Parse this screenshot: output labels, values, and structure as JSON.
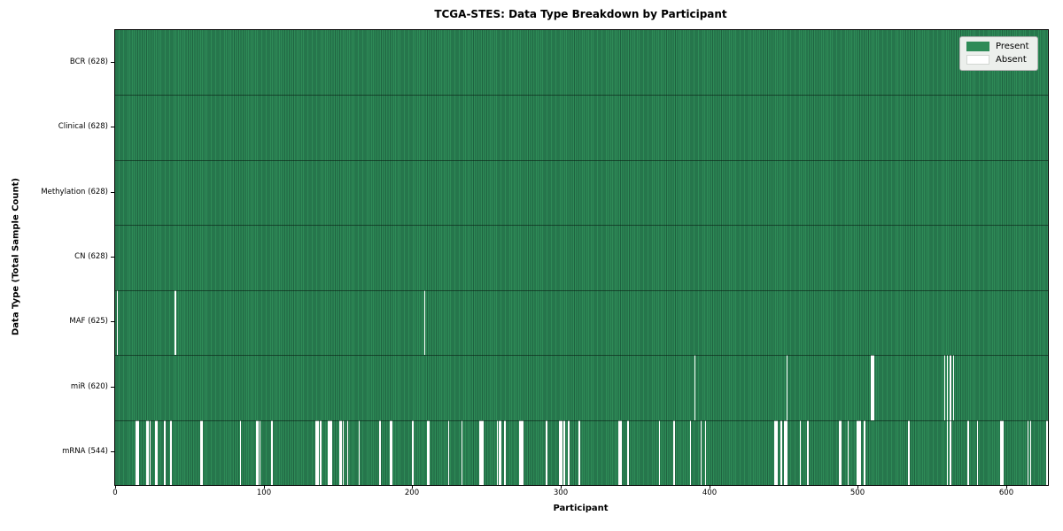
{
  "figure": {
    "title": "TCGA-STES: Data Type Breakdown by Participant"
  },
  "chart_data": {
    "type": "heatmap",
    "title": "TCGA-STES: Data Type Breakdown by Participant",
    "xlabel": "Participant",
    "ylabel": "Data Type (Total Sample Count)",
    "x_ticks": [
      0,
      100,
      200,
      300,
      400,
      500,
      600
    ],
    "x_range": [
      0,
      628
    ],
    "n_participants": 628,
    "grid": false,
    "legend_position": "upper right",
    "colors": {
      "present": "#2e8b57",
      "present_edge": "#1f6240",
      "absent": "#ffffff",
      "legend_bg": "#ecefec",
      "legend_border": "#b0b0b0"
    },
    "legend": [
      {
        "label": "Present",
        "color": "#2e8b57"
      },
      {
        "label": "Absent",
        "color": "#ffffff"
      }
    ],
    "rows": [
      {
        "label": "BCR (628)",
        "data_type": "BCR",
        "present_count": 628,
        "absent": []
      },
      {
        "label": "Clinical (628)",
        "data_type": "Clinical",
        "present_count": 628,
        "absent": []
      },
      {
        "label": "Methylation (628)",
        "data_type": "Methylation",
        "present_count": 628,
        "absent": []
      },
      {
        "label": "CN (628)",
        "data_type": "CN",
        "present_count": 628,
        "absent": []
      },
      {
        "label": "MAF (625)",
        "data_type": "MAF",
        "present_count": 625,
        "absent": [
          1,
          40,
          208
        ]
      },
      {
        "label": "miR (620)",
        "data_type": "miR",
        "present_count": 620,
        "absent": [
          390,
          452,
          509,
          510,
          558,
          560,
          562,
          564
        ]
      },
      {
        "label": "mRNA (544)",
        "data_type": "mRNA",
        "present_count": 544,
        "absent": [
          14,
          15,
          21,
          22,
          23,
          27,
          28,
          33,
          37,
          57,
          58,
          84,
          95,
          96,
          97,
          105,
          135,
          136,
          138,
          143,
          144,
          145,
          151,
          152,
          153,
          156,
          164,
          178,
          185,
          186,
          200,
          210,
          211,
          224,
          233,
          245,
          246,
          247,
          257,
          258,
          259,
          262,
          272,
          273,
          274,
          290,
          299,
          300,
          302,
          305,
          312,
          339,
          340,
          345,
          366,
          376,
          387,
          394,
          397,
          444,
          445,
          448,
          450,
          451,
          452,
          461,
          466,
          487,
          488,
          493,
          499,
          500,
          501,
          504,
          534,
          560,
          562,
          574,
          580,
          596,
          597,
          614,
          616,
          627
        ]
      }
    ]
  }
}
